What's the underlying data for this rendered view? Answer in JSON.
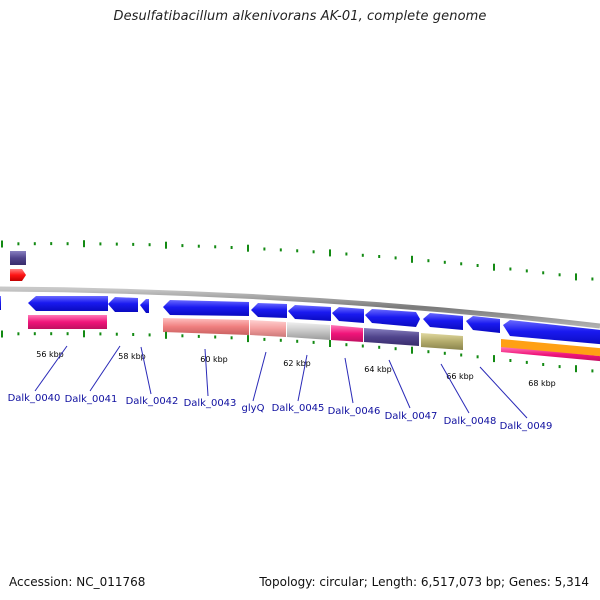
{
  "title": "Desulfatibacillum alkenivorans AK-01, complete genome",
  "footer": {
    "accession": "Accession: NC_011768",
    "topology": "Topology: circular; Length: 6,517,073 bp; Genes: 5,314"
  },
  "colors": {
    "backbone": "#8c8c8c",
    "cds_blue": "#1414e6",
    "tick_green": "#138a13",
    "label_blue": "#1010a0",
    "pink": "#f0146e",
    "salmon": "#f08080",
    "light_salmon": "#f4a0a0",
    "gray": "#c8c8c8",
    "navy_purple": "#50448c",
    "olive": "#b4ac6c",
    "orange": "#ffa014",
    "red": "#ff1414",
    "magenta": "#e61e8c"
  },
  "scale_labels": [
    "56 kbp",
    "58 kbp",
    "60 kbp",
    "62 kbp",
    "64 kbp",
    "66 kbp",
    "68 kbp"
  ],
  "gene_labels": [
    "Dalk_0040",
    "Dalk_0041",
    "Dalk_0042",
    "Dalk_0043",
    "glyQ",
    "Dalk_0045",
    "Dalk_0046",
    "Dalk_0047",
    "Dalk_0048",
    "Dalk_0049"
  ]
}
